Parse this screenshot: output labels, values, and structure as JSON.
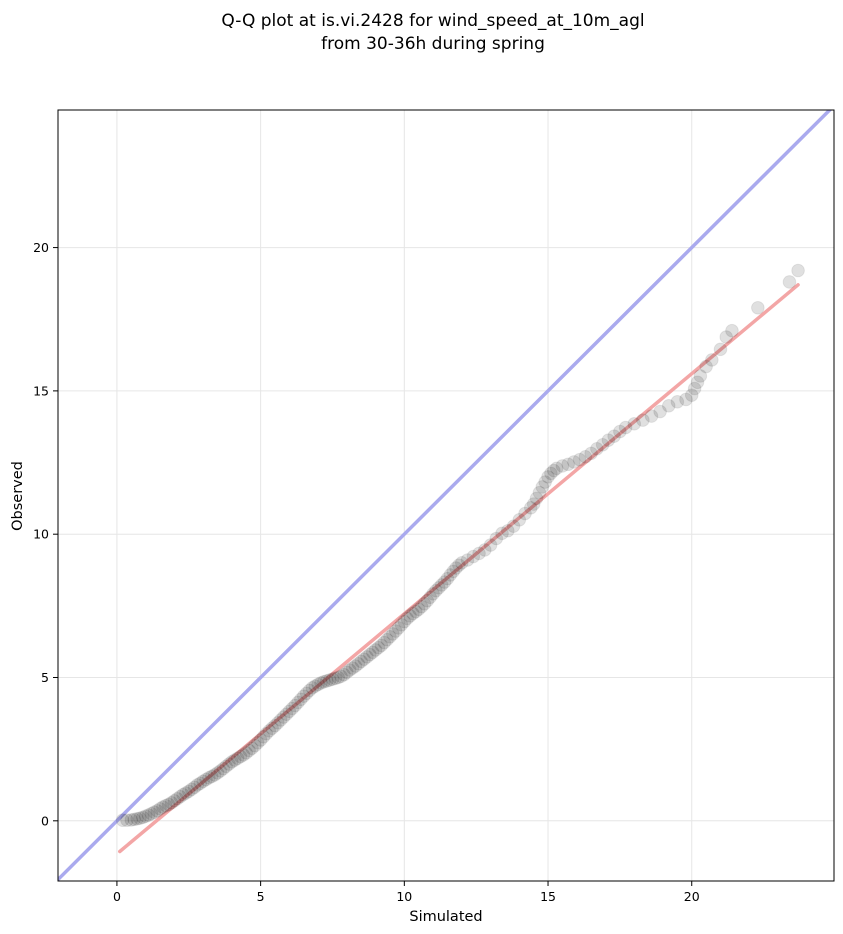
{
  "chart_data": {
    "type": "scatter",
    "title_line1": "Q-Q plot at is.vi.2428 for wind_speed_at_10m_agl",
    "title_line2": "from 30-36h during spring",
    "xlabel": "Simulated",
    "ylabel": "Observed",
    "xlim": [
      -2.05,
      24.95
    ],
    "ylim": [
      -2.1,
      24.8
    ],
    "xticks": [
      0,
      5,
      10,
      15,
      20
    ],
    "yticks": [
      0,
      5,
      10,
      15,
      20
    ],
    "grid": true,
    "identity_line": {
      "color": "#aaaaee",
      "from": [
        -2.05,
        -2.05
      ],
      "to": [
        24.95,
        24.95
      ]
    },
    "fit_line": {
      "color": "#f3a6a6",
      "from": [
        0.1,
        -1.07
      ],
      "to": [
        23.7,
        18.7
      ]
    },
    "point_color": "#000000",
    "points": [
      [
        0.2,
        0.02
      ],
      [
        0.35,
        0.02
      ],
      [
        0.5,
        0.03
      ],
      [
        0.6,
        0.05
      ],
      [
        0.7,
        0.07
      ],
      [
        0.8,
        0.09
      ],
      [
        0.9,
        0.12
      ],
      [
        1.0,
        0.16
      ],
      [
        1.1,
        0.2
      ],
      [
        1.2,
        0.25
      ],
      [
        1.3,
        0.3
      ],
      [
        1.4,
        0.35
      ],
      [
        1.5,
        0.42
      ],
      [
        1.6,
        0.48
      ],
      [
        1.7,
        0.53
      ],
      [
        1.8,
        0.57
      ],
      [
        1.9,
        0.63
      ],
      [
        2.0,
        0.7
      ],
      [
        2.1,
        0.77
      ],
      [
        2.2,
        0.84
      ],
      [
        2.3,
        0.91
      ],
      [
        2.4,
        0.97
      ],
      [
        2.5,
        1.03
      ],
      [
        2.6,
        1.1
      ],
      [
        2.7,
        1.17
      ],
      [
        2.8,
        1.25
      ],
      [
        2.9,
        1.31
      ],
      [
        3.0,
        1.38
      ],
      [
        3.1,
        1.44
      ],
      [
        3.2,
        1.5
      ],
      [
        3.3,
        1.55
      ],
      [
        3.4,
        1.6
      ],
      [
        3.5,
        1.67
      ],
      [
        3.6,
        1.74
      ],
      [
        3.7,
        1.82
      ],
      [
        3.8,
        1.9
      ],
      [
        3.9,
        1.98
      ],
      [
        4.0,
        2.06
      ],
      [
        4.1,
        2.12
      ],
      [
        4.2,
        2.18
      ],
      [
        4.3,
        2.24
      ],
      [
        4.4,
        2.3
      ],
      [
        4.5,
        2.37
      ],
      [
        4.6,
        2.45
      ],
      [
        4.7,
        2.53
      ],
      [
        4.8,
        2.62
      ],
      [
        4.9,
        2.72
      ],
      [
        5.0,
        2.82
      ],
      [
        5.1,
        2.93
      ],
      [
        5.2,
        3.04
      ],
      [
        5.3,
        3.14
      ],
      [
        5.4,
        3.23
      ],
      [
        5.5,
        3.32
      ],
      [
        5.6,
        3.42
      ],
      [
        5.7,
        3.52
      ],
      [
        5.8,
        3.62
      ],
      [
        5.9,
        3.72
      ],
      [
        6.0,
        3.82
      ],
      [
        6.1,
        3.92
      ],
      [
        6.2,
        4.02
      ],
      [
        6.3,
        4.13
      ],
      [
        6.4,
        4.24
      ],
      [
        6.5,
        4.35
      ],
      [
        6.6,
        4.45
      ],
      [
        6.7,
        4.55
      ],
      [
        6.8,
        4.64
      ],
      [
        6.9,
        4.7
      ],
      [
        7.0,
        4.76
      ],
      [
        7.1,
        4.81
      ],
      [
        7.2,
        4.85
      ],
      [
        7.3,
        4.88
      ],
      [
        7.4,
        4.91
      ],
      [
        7.5,
        4.94
      ],
      [
        7.6,
        4.97
      ],
      [
        7.7,
        5.0
      ],
      [
        7.8,
        5.04
      ],
      [
        7.9,
        5.1
      ],
      [
        8.0,
        5.18
      ],
      [
        8.1,
        5.26
      ],
      [
        8.2,
        5.33
      ],
      [
        8.3,
        5.4
      ],
      [
        8.4,
        5.48
      ],
      [
        8.5,
        5.56
      ],
      [
        8.6,
        5.64
      ],
      [
        8.7,
        5.72
      ],
      [
        8.8,
        5.8
      ],
      [
        8.9,
        5.88
      ],
      [
        9.0,
        5.96
      ],
      [
        9.1,
        6.04
      ],
      [
        9.2,
        6.12
      ],
      [
        9.3,
        6.22
      ],
      [
        9.4,
        6.32
      ],
      [
        9.5,
        6.42
      ],
      [
        9.6,
        6.52
      ],
      [
        9.7,
        6.62
      ],
      [
        9.8,
        6.73
      ],
      [
        9.9,
        6.84
      ],
      [
        10.0,
        6.95
      ],
      [
        10.1,
        7.06
      ],
      [
        10.2,
        7.15
      ],
      [
        10.3,
        7.23
      ],
      [
        10.4,
        7.3
      ],
      [
        10.5,
        7.38
      ],
      [
        10.6,
        7.47
      ],
      [
        10.7,
        7.57
      ],
      [
        10.8,
        7.68
      ],
      [
        10.9,
        7.8
      ],
      [
        11.0,
        7.92
      ],
      [
        11.1,
        8.03
      ],
      [
        11.2,
        8.13
      ],
      [
        11.3,
        8.23
      ],
      [
        11.4,
        8.33
      ],
      [
        11.5,
        8.45
      ],
      [
        11.6,
        8.58
      ],
      [
        11.7,
        8.7
      ],
      [
        11.8,
        8.82
      ],
      [
        11.9,
        8.92
      ],
      [
        12.0,
        9.0
      ],
      [
        12.2,
        9.1
      ],
      [
        12.4,
        9.22
      ],
      [
        12.6,
        9.33
      ],
      [
        12.8,
        9.45
      ],
      [
        13.0,
        9.62
      ],
      [
        13.2,
        9.85
      ],
      [
        13.4,
        10.03
      ],
      [
        13.6,
        10.12
      ],
      [
        13.8,
        10.28
      ],
      [
        14.0,
        10.5
      ],
      [
        14.2,
        10.72
      ],
      [
        14.4,
        10.92
      ],
      [
        14.5,
        11.05
      ],
      [
        14.6,
        11.25
      ],
      [
        14.7,
        11.45
      ],
      [
        14.8,
        11.65
      ],
      [
        14.9,
        11.82
      ],
      [
        15.0,
        12.0
      ],
      [
        15.1,
        12.12
      ],
      [
        15.2,
        12.22
      ],
      [
        15.3,
        12.3
      ],
      [
        15.5,
        12.38
      ],
      [
        15.7,
        12.44
      ],
      [
        15.9,
        12.52
      ],
      [
        16.1,
        12.6
      ],
      [
        16.3,
        12.7
      ],
      [
        16.5,
        12.82
      ],
      [
        16.7,
        12.98
      ],
      [
        16.9,
        13.12
      ],
      [
        17.1,
        13.28
      ],
      [
        17.3,
        13.42
      ],
      [
        17.5,
        13.58
      ],
      [
        17.7,
        13.72
      ],
      [
        18.0,
        13.85
      ],
      [
        18.3,
        13.98
      ],
      [
        18.6,
        14.12
      ],
      [
        18.9,
        14.28
      ],
      [
        19.2,
        14.48
      ],
      [
        19.5,
        14.62
      ],
      [
        19.8,
        14.7
      ],
      [
        20.0,
        14.85
      ],
      [
        20.1,
        15.08
      ],
      [
        20.2,
        15.3
      ],
      [
        20.3,
        15.52
      ],
      [
        20.5,
        15.85
      ],
      [
        20.7,
        16.08
      ],
      [
        21.0,
        16.45
      ],
      [
        21.2,
        16.88
      ],
      [
        21.4,
        17.1
      ],
      [
        22.3,
        17.9
      ],
      [
        23.4,
        18.8
      ],
      [
        23.7,
        19.2
      ]
    ]
  }
}
